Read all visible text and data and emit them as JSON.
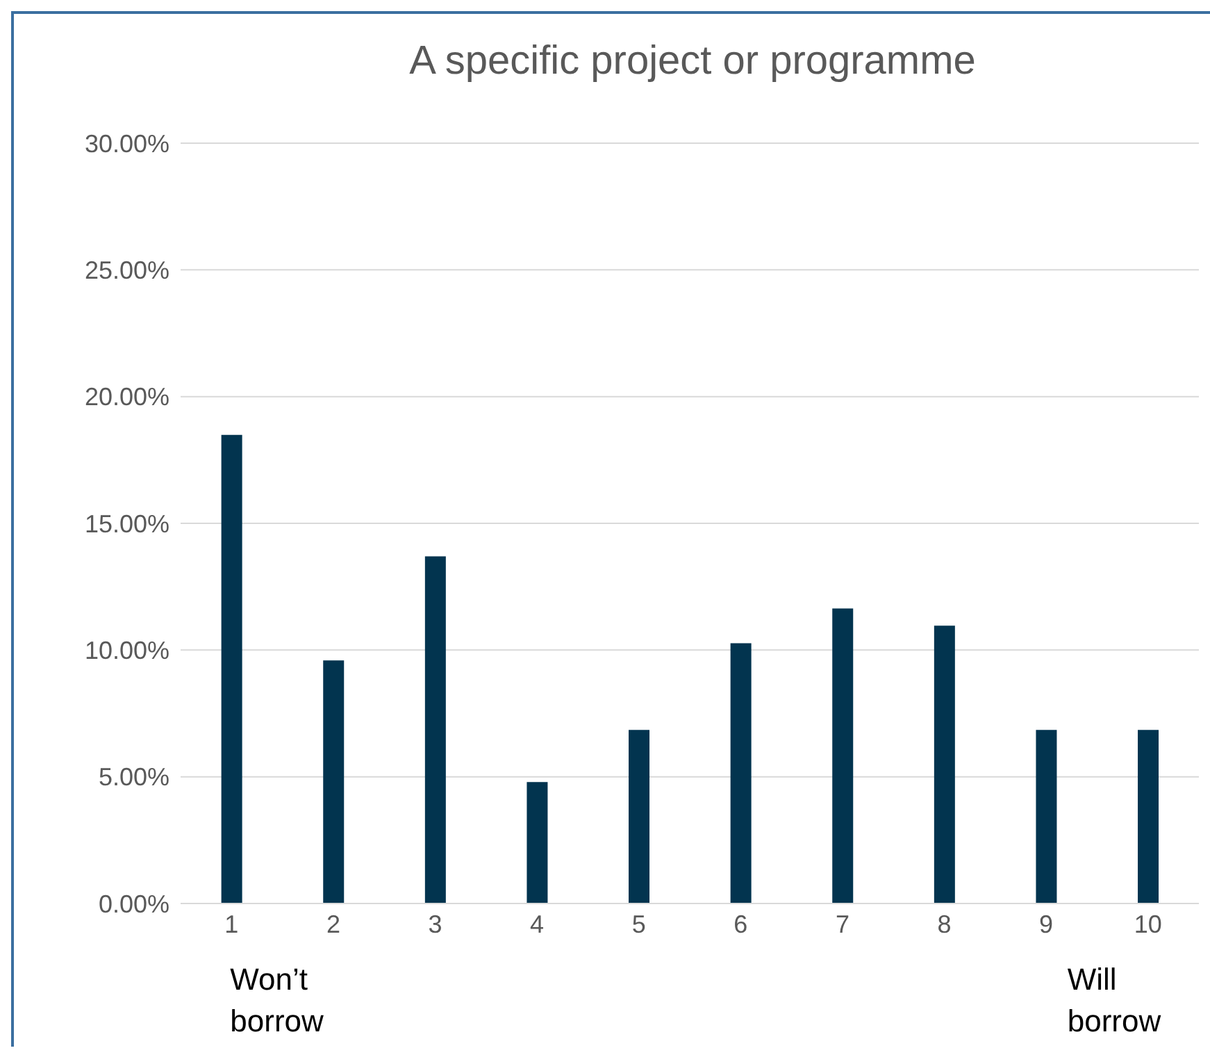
{
  "chart_data": {
    "type": "bar",
    "title": "A specific project or programme",
    "categories": [
      "1",
      "2",
      "3",
      "4",
      "5",
      "6",
      "7",
      "8",
      "9",
      "10"
    ],
    "values": [
      18.49,
      9.59,
      13.7,
      4.79,
      6.85,
      10.27,
      11.64,
      10.96,
      6.85,
      6.85
    ],
    "color": "#02344f",
    "ylim": [
      0,
      30
    ],
    "yticks": [
      {
        "value": 0,
        "label": "0.00%"
      },
      {
        "value": 5,
        "label": "5.00%"
      },
      {
        "value": 10,
        "label": "10.00%"
      },
      {
        "value": 15,
        "label": "15.00%"
      },
      {
        "value": 20,
        "label": "20.00%"
      },
      {
        "value": 25,
        "label": "25.00%"
      },
      {
        "value": 30,
        "label": "30.00%"
      }
    ],
    "grid": "y",
    "annotations": [
      "Won’t borrow",
      "Will borrow"
    ]
  }
}
